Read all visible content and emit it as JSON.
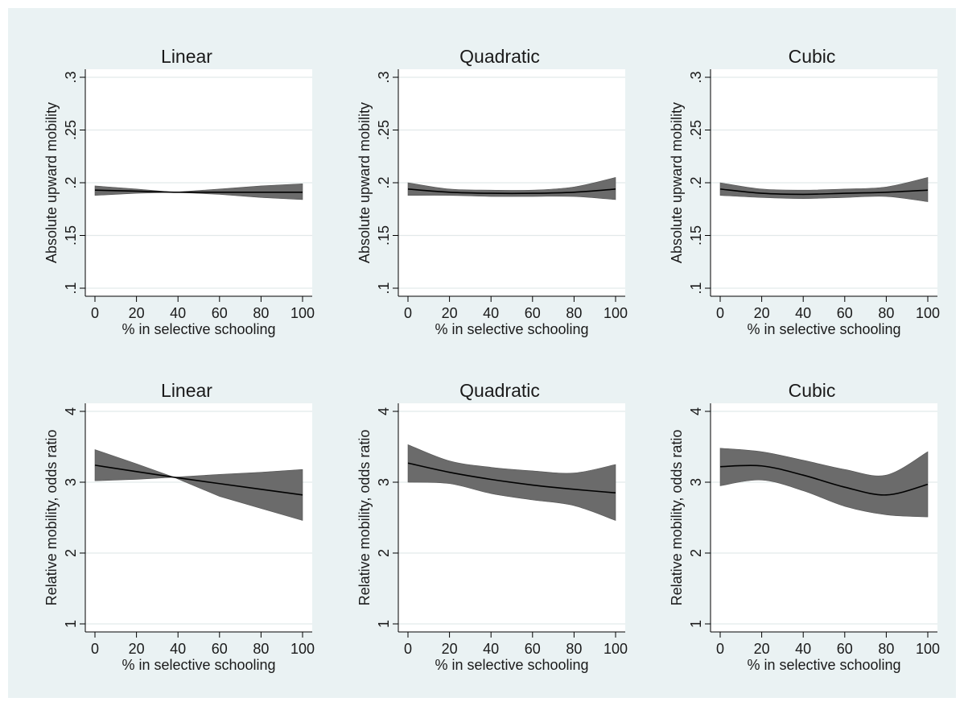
{
  "chart_data": [
    {
      "type": "line",
      "title": "Linear",
      "xlabel": "% in selective schooling",
      "ylabel": "Absolute upward mobility",
      "xlim": [
        0,
        100
      ],
      "ylim": [
        0.1,
        0.3
      ],
      "xticks": [
        0,
        20,
        40,
        60,
        80,
        100
      ],
      "xtick_labels": [
        "0",
        "20",
        "40",
        "60",
        "80",
        "100"
      ],
      "yticks": [
        0.1,
        0.15,
        0.2,
        0.25,
        0.3
      ],
      "ytick_labels": [
        ".1",
        ".15",
        ".2",
        ".25",
        ".3"
      ],
      "grid": true,
      "x": [
        0,
        20,
        38,
        60,
        80,
        100
      ],
      "y": [
        0.193,
        0.192,
        0.191,
        0.191,
        0.191,
        0.191
      ],
      "ci_lower": [
        0.188,
        0.19,
        0.191,
        0.189,
        0.186,
        0.184
      ],
      "ci_upper": [
        0.197,
        0.194,
        0.191,
        0.194,
        0.197,
        0.199
      ]
    },
    {
      "type": "line",
      "title": "Quadratic",
      "xlabel": "% in selective schooling",
      "ylabel": "Absolute upward mobility",
      "xlim": [
        0,
        100
      ],
      "ylim": [
        0.1,
        0.3
      ],
      "xticks": [
        0,
        20,
        40,
        60,
        80,
        100
      ],
      "xtick_labels": [
        "0",
        "20",
        "40",
        "60",
        "80",
        "100"
      ],
      "yticks": [
        0.1,
        0.15,
        0.2,
        0.25,
        0.3
      ],
      "ytick_labels": [
        ".1",
        ".15",
        ".2",
        ".25",
        ".3"
      ],
      "grid": true,
      "x": [
        0,
        20,
        40,
        60,
        80,
        100
      ],
      "y": [
        0.194,
        0.191,
        0.19,
        0.19,
        0.191,
        0.194
      ],
      "ci_lower": [
        0.188,
        0.188,
        0.187,
        0.187,
        0.187,
        0.184
      ],
      "ci_upper": [
        0.2,
        0.194,
        0.193,
        0.193,
        0.196,
        0.205
      ]
    },
    {
      "type": "line",
      "title": "Cubic",
      "xlabel": "% in selective schooling",
      "ylabel": "Absolute upward mobility",
      "xlim": [
        0,
        100
      ],
      "ylim": [
        0.1,
        0.3
      ],
      "xticks": [
        0,
        20,
        40,
        60,
        80,
        100
      ],
      "xtick_labels": [
        "0",
        "20",
        "40",
        "60",
        "80",
        "100"
      ],
      "yticks": [
        0.1,
        0.15,
        0.2,
        0.25,
        0.3
      ],
      "ytick_labels": [
        ".1",
        ".15",
        ".2",
        ".25",
        ".3"
      ],
      "grid": true,
      "x": [
        0,
        20,
        40,
        60,
        80,
        100
      ],
      "y": [
        0.194,
        0.19,
        0.189,
        0.19,
        0.191,
        0.193
      ],
      "ci_lower": [
        0.188,
        0.186,
        0.185,
        0.186,
        0.187,
        0.182
      ],
      "ci_upper": [
        0.2,
        0.194,
        0.193,
        0.194,
        0.196,
        0.205
      ]
    },
    {
      "type": "line",
      "title": "Linear",
      "xlabel": "% in selective schooling",
      "ylabel": "Relative mobility, odds ratio",
      "xlim": [
        0,
        100
      ],
      "ylim": [
        1,
        4
      ],
      "xticks": [
        0,
        20,
        40,
        60,
        80,
        100
      ],
      "xtick_labels": [
        "0",
        "20",
        "40",
        "60",
        "80",
        "100"
      ],
      "yticks": [
        1,
        2,
        3,
        4
      ],
      "ytick_labels": [
        "1",
        "2",
        "3",
        "4"
      ],
      "grid": true,
      "x": [
        0,
        20,
        38,
        60,
        80,
        100
      ],
      "y": [
        3.24,
        3.15,
        3.07,
        2.98,
        2.9,
        2.82
      ],
      "ci_lower": [
        3.02,
        3.04,
        3.07,
        2.8,
        2.63,
        2.46
      ],
      "ci_upper": [
        3.46,
        3.26,
        3.07,
        3.11,
        3.14,
        3.18
      ]
    },
    {
      "type": "line",
      "title": "Quadratic",
      "xlabel": "% in selective schooling",
      "ylabel": "Relative mobility, odds ratio",
      "xlim": [
        0,
        100
      ],
      "ylim": [
        1,
        4
      ],
      "xticks": [
        0,
        20,
        40,
        60,
        80,
        100
      ],
      "xtick_labels": [
        "0",
        "20",
        "40",
        "60",
        "80",
        "100"
      ],
      "yticks": [
        1,
        2,
        3,
        4
      ],
      "ytick_labels": [
        "1",
        "2",
        "3",
        "4"
      ],
      "grid": true,
      "x": [
        0,
        20,
        40,
        60,
        80,
        100
      ],
      "y": [
        3.27,
        3.14,
        3.04,
        2.96,
        2.9,
        2.85
      ],
      "ci_lower": [
        3.0,
        2.98,
        2.84,
        2.75,
        2.67,
        2.46
      ],
      "ci_upper": [
        3.53,
        3.3,
        3.21,
        3.16,
        3.13,
        3.25
      ]
    },
    {
      "type": "line",
      "title": "Cubic",
      "xlabel": "% in selective schooling",
      "ylabel": "Relative mobility, odds ratio",
      "xlim": [
        0,
        100
      ],
      "ylim": [
        1,
        4
      ],
      "xticks": [
        0,
        20,
        40,
        60,
        80,
        100
      ],
      "xtick_labels": [
        "0",
        "20",
        "40",
        "60",
        "80",
        "100"
      ],
      "yticks": [
        1,
        2,
        3,
        4
      ],
      "ytick_labels": [
        "1",
        "2",
        "3",
        "4"
      ],
      "grid": true,
      "x": [
        0,
        20,
        40,
        60,
        80,
        100
      ],
      "y": [
        3.22,
        3.23,
        3.1,
        2.93,
        2.82,
        2.97
      ],
      "ci_lower": [
        2.95,
        3.03,
        2.88,
        2.66,
        2.54,
        2.51
      ],
      "ci_upper": [
        3.48,
        3.43,
        3.31,
        3.18,
        3.1,
        3.43
      ]
    }
  ]
}
